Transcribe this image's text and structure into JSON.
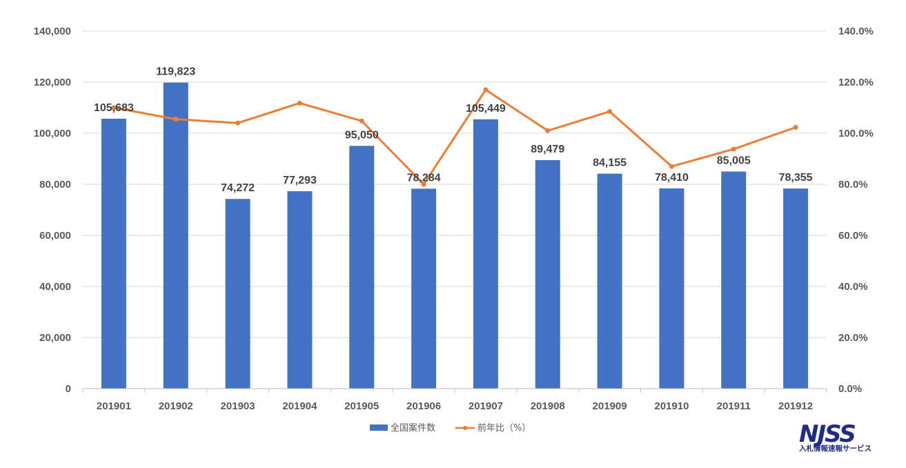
{
  "chart_data": {
    "type": "bar+line",
    "categories": [
      "201901",
      "201902",
      "201903",
      "201904",
      "201905",
      "201906",
      "201907",
      "201908",
      "201909",
      "201910",
      "201911",
      "201912"
    ],
    "series": [
      {
        "name": "全国案件数",
        "type": "bar",
        "axis": "left",
        "color": "#4472c4",
        "values": [
          105683,
          119823,
          74272,
          77293,
          95050,
          78284,
          105449,
          89479,
          84155,
          78410,
          85005,
          78355
        ],
        "labels": [
          "105,683",
          "119,823",
          "74,272",
          "77,293",
          "95,050",
          "78,284",
          "105,449",
          "89,479",
          "84,155",
          "78,410",
          "85,005",
          "78,355"
        ]
      },
      {
        "name": "前年比（%）",
        "type": "line",
        "axis": "right",
        "color": "#ed7d31",
        "values": [
          110.0,
          105.5,
          104.0,
          111.8,
          104.8,
          80.0,
          117.0,
          101.0,
          108.5,
          87.0,
          93.8,
          102.3
        ]
      }
    ],
    "y_left": {
      "min": 0,
      "max": 140000,
      "ticks": [
        "0",
        "20,000",
        "40,000",
        "60,000",
        "80,000",
        "100,000",
        "120,000",
        "140,000"
      ]
    },
    "y_right": {
      "min": 0,
      "max": 140,
      "ticks": [
        "0.0%",
        "20.0%",
        "40.0%",
        "60.0%",
        "80.0%",
        "100.0%",
        "120.0%",
        "140.0%"
      ]
    },
    "grid": true,
    "legend_position": "bottom-center"
  },
  "logo": {
    "main": "NJSS",
    "sub": "入札情報速報サービス"
  }
}
